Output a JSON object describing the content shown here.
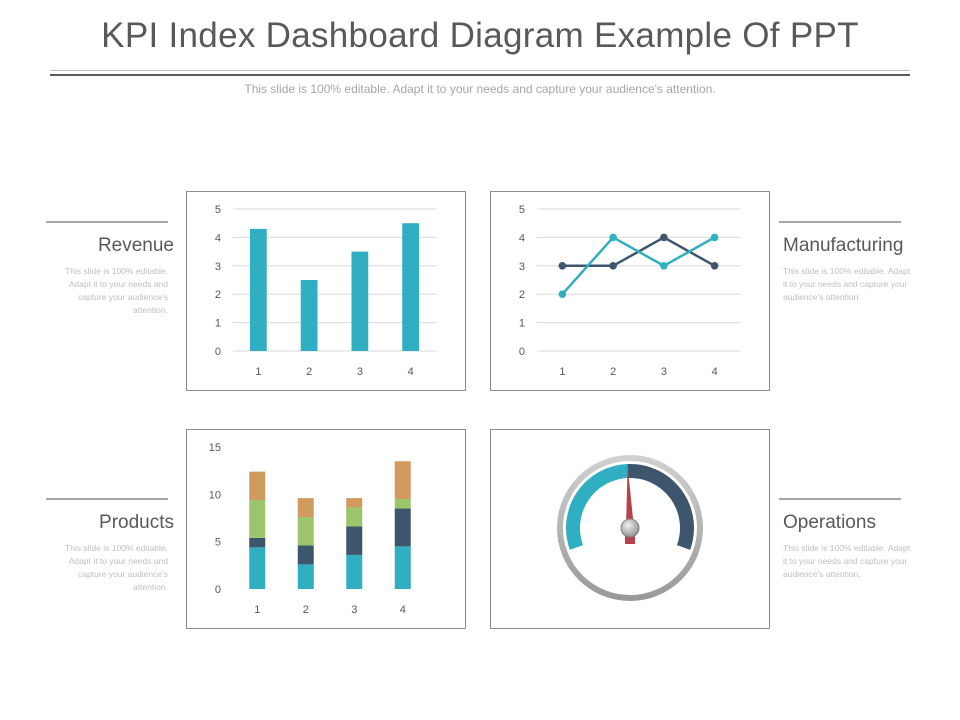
{
  "title": "KPI Index Dashboard Diagram Example Of PPT",
  "subtitle": "This slide is 100% editable. Adapt it to your needs and capture your audience's attention.",
  "sections": {
    "revenue": {
      "label": "Revenue",
      "desc": "This slide is 100% editable. Adapt it to your needs and capture your audience's attention."
    },
    "manufacturing": {
      "label": "Manufacturing",
      "desc": "This slide is 100% editable. Adapt it to your needs and capture your audience's attention."
    },
    "products": {
      "label": "Products",
      "desc": "This slide is 100% editable. Adapt it to your needs and capture your audience's attention."
    },
    "operations": {
      "label": "Operations",
      "desc": "This slide is 100% editable. Adapt it to your needs and capture your audience's attention."
    }
  },
  "chart_data": [
    {
      "type": "bar",
      "categories": [
        "1",
        "2",
        "3",
        "4"
      ],
      "values": [
        4.3,
        2.5,
        3.5,
        4.5
      ],
      "ylim": [
        0,
        5
      ],
      "yticks": [
        0,
        1,
        2,
        3,
        4,
        5
      ],
      "grid": true,
      "colors": [
        "#2fafc1"
      ]
    },
    {
      "type": "line",
      "categories": [
        "1",
        "2",
        "3",
        "4"
      ],
      "series": [
        {
          "values": [
            3,
            3,
            4,
            3
          ],
          "color": "#3d566e"
        },
        {
          "values": [
            2,
            4,
            3,
            4
          ],
          "color": "#2fafc1"
        }
      ],
      "ylim": [
        0,
        5
      ],
      "yticks": [
        0,
        1,
        2,
        3,
        4,
        5
      ],
      "grid": true
    },
    {
      "type": "bar",
      "stacked": true,
      "categories": [
        "1",
        "2",
        "3",
        "4"
      ],
      "series": [
        {
          "values": [
            4.4,
            2.6,
            3.6,
            4.5
          ],
          "color": "#2fafc1"
        },
        {
          "values": [
            1.0,
            2.0,
            3.0,
            4.0
          ],
          "color": "#3d566e"
        },
        {
          "values": [
            4.0,
            3.0,
            2.0,
            1.0
          ],
          "color": "#9bc46b"
        },
        {
          "values": [
            3.0,
            2.0,
            1.0,
            4.0
          ],
          "color": "#d19a5f"
        }
      ],
      "ylim": [
        0,
        15
      ],
      "yticks": [
        0,
        5,
        10,
        15
      ],
      "grid": false
    },
    {
      "type": "gauge",
      "value": 0.49,
      "colors": {
        "low": "#2fafc1",
        "high": "#3d566e",
        "needle": "#b8424a",
        "ring": "#b3b3b3"
      }
    }
  ]
}
